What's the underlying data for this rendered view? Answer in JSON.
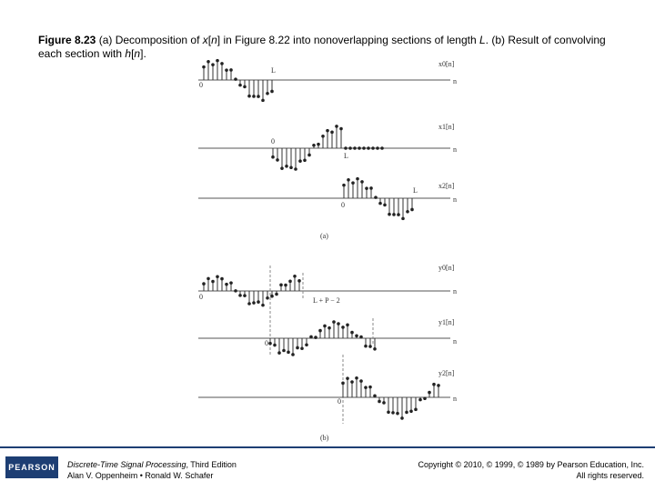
{
  "caption": {
    "parts": [
      "Figure 8.23",
      "  (a) Decomposition of ",
      "x",
      "[",
      "n",
      "] in Figure 8.22 into nonoverlapping sections of length ",
      "L",
      ". (b) Result of convolving each section with ",
      "h",
      "[",
      "n",
      "]."
    ]
  },
  "figure": {
    "labels": {
      "x0": "x0[n]",
      "x1": "x1[n]",
      "x2": "x2[n]",
      "y0": "y0[n]",
      "y1": "y1[n]",
      "y2": "y2[n]",
      "n": "n",
      "zero": "0",
      "L": "L",
      "LP": "L + P − 2",
      "a": "(a)",
      "b": "(b)"
    }
  },
  "footer": {
    "logo": "PEARSON",
    "book": "Discrete-Time Signal Processing",
    "edition": ", Third Edition",
    "authors": "Alan V. Oppenheim • Ronald W. Schafer",
    "copyright": "Copyright © 2010, © 1999, © 1989 by Pearson Education, Inc.",
    "rights": "All rights reserved."
  }
}
